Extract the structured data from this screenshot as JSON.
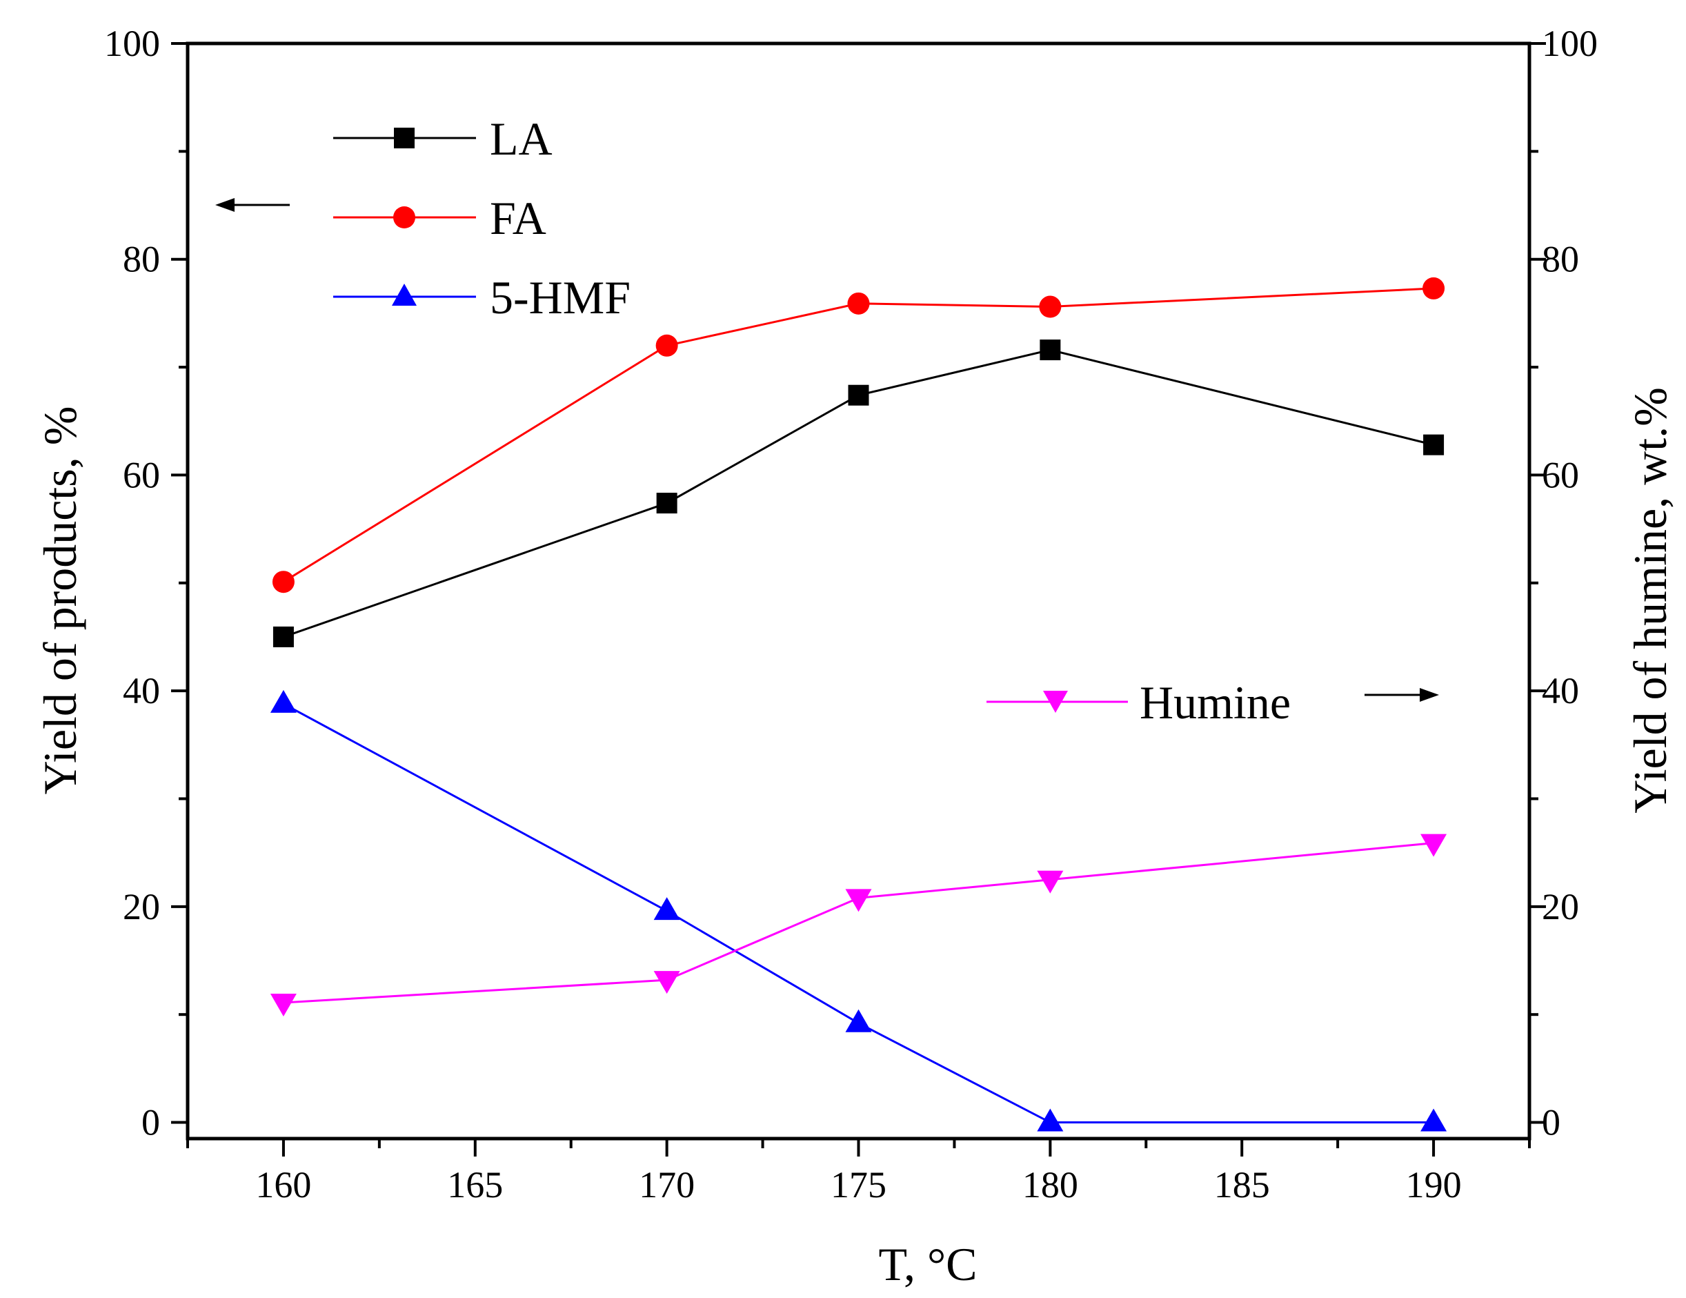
{
  "chart_data": {
    "type": "line",
    "title": "",
    "xlabel": "T, °C",
    "ylabel_left": "Yield of products, %",
    "ylabel_right": "Yield of humine, wt.%",
    "xlim": [
      157.5,
      192.5
    ],
    "ylim_left": [
      -1.5,
      100
    ],
    "ylim_right": [
      -1.5,
      100
    ],
    "xticks": [
      160,
      165,
      170,
      175,
      180,
      185,
      190
    ],
    "xtick_labels": [
      "160",
      "165",
      "170",
      "175",
      "180",
      "185",
      "190"
    ],
    "yticks": [
      0,
      20,
      40,
      60,
      80,
      100
    ],
    "ytick_labels": [
      "0",
      "20",
      "40",
      "60",
      "80",
      "100"
    ],
    "grid": false,
    "series": [
      {
        "name": "LA",
        "axis": "left",
        "color": "#000000",
        "marker": "square",
        "x": [
          160,
          170,
          175,
          180,
          190
        ],
        "values": [
          45,
          57.4,
          67.4,
          71.6,
          62.8
        ]
      },
      {
        "name": "FA",
        "axis": "left",
        "color": "#ff0000",
        "marker": "circle",
        "x": [
          160,
          170,
          175,
          180,
          190
        ],
        "values": [
          50.1,
          72,
          75.9,
          75.6,
          77.3
        ]
      },
      {
        "name": "5-HMF",
        "axis": "left",
        "color": "#0000ff",
        "marker": "triangle-up",
        "x": [
          160,
          170,
          175,
          180,
          190
        ],
        "values": [
          38.8,
          19.6,
          9.2,
          0,
          0
        ]
      },
      {
        "name": "Humine",
        "axis": "right",
        "color": "#ff00ff",
        "marker": "triangle-down",
        "x": [
          160,
          170,
          175,
          180,
          190
        ],
        "values": [
          11.1,
          13.2,
          20.8,
          22.5,
          25.9
        ]
      }
    ],
    "annotations": [
      {
        "type": "arrow",
        "direction": "left",
        "meaning": "LA, FA, 5-HMF on left axis"
      },
      {
        "type": "arrow",
        "direction": "right",
        "meaning": "Humine on right axis"
      }
    ]
  }
}
